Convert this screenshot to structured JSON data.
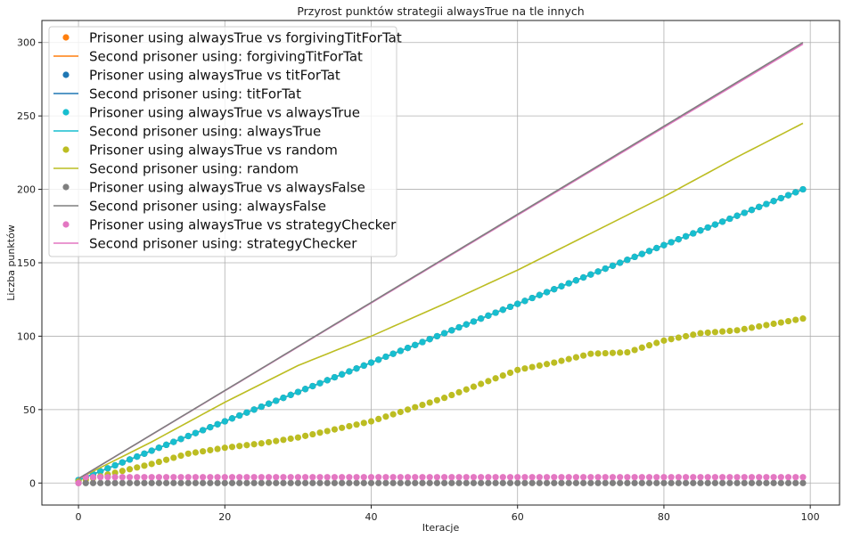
{
  "chart_data": {
    "type": "line",
    "title": "Przyrost punktów strategii alwaysTrue na tle innych",
    "xlabel": "Iteracje",
    "ylabel": "Liczba punktów",
    "xlim": [
      -5,
      104
    ],
    "ylim": [
      -15,
      315
    ],
    "xticks": [
      0,
      20,
      40,
      60,
      80,
      100
    ],
    "yticks": [
      0,
      50,
      100,
      150,
      200,
      250,
      300
    ],
    "grid": true,
    "legend_position": "top-left",
    "n_points": 100,
    "legend_entries": [
      {
        "label": "Prisoner using alwaysTrue vs forgivingTitForTat",
        "kind": "marker",
        "color": "#ff7f0e"
      },
      {
        "label": "Second prisoner using: forgivingTitForTat",
        "kind": "line",
        "color": "#ff7f0e"
      },
      {
        "label": "Prisoner using alwaysTrue vs titForTat",
        "kind": "marker",
        "color": "#1f77b4"
      },
      {
        "label": "Second prisoner using: titForTat",
        "kind": "line",
        "color": "#1f77b4"
      },
      {
        "label": "Prisoner using alwaysTrue vs alwaysTrue",
        "kind": "marker",
        "color": "#17becf"
      },
      {
        "label": "Second prisoner using: alwaysTrue",
        "kind": "line",
        "color": "#17becf"
      },
      {
        "label": "Prisoner using alwaysTrue vs random",
        "kind": "marker",
        "color": "#bcbd22"
      },
      {
        "label": "Second prisoner using: random",
        "kind": "line",
        "color": "#bcbd22"
      },
      {
        "label": "Prisoner using alwaysTrue vs alwaysFalse",
        "kind": "marker",
        "color": "#7f7f7f"
      },
      {
        "label": "Second prisoner using: alwaysFalse",
        "kind": "line",
        "color": "#7f7f7f"
      },
      {
        "label": "Prisoner using alwaysTrue vs strategyChecker",
        "kind": "marker",
        "color": "#e377c2"
      },
      {
        "label": "Second prisoner using: strategyChecker",
        "kind": "line",
        "color": "#e377c2"
      }
    ],
    "series": [
      {
        "kind": "line",
        "color": "#ff7f0e",
        "start": 2,
        "end": 200
      },
      {
        "kind": "line",
        "color": "#1f77b4",
        "start": 2,
        "end": 200
      },
      {
        "kind": "line",
        "color": "#17becf",
        "start": 2,
        "end": 200
      },
      {
        "kind": "scatter",
        "color": "#ff7f0e",
        "start": 2,
        "end": 200
      },
      {
        "kind": "scatter",
        "color": "#1f77b4",
        "start": 2,
        "end": 200
      },
      {
        "kind": "scatter",
        "color": "#17becf",
        "start": 2,
        "end": 200
      },
      {
        "kind": "line",
        "color": "#bcbd22",
        "keypoints": [
          [
            0,
            3
          ],
          [
            10,
            28
          ],
          [
            20,
            55
          ],
          [
            30,
            80
          ],
          [
            40,
            100
          ],
          [
            50,
            122
          ],
          [
            60,
            145
          ],
          [
            70,
            170
          ],
          [
            80,
            195
          ],
          [
            90,
            222
          ],
          [
            99,
            245
          ]
        ]
      },
      {
        "kind": "scatter",
        "color": "#bcbd22",
        "keypoints": [
          [
            0,
            1
          ],
          [
            10,
            13
          ],
          [
            15,
            20
          ],
          [
            20,
            24
          ],
          [
            25,
            27
          ],
          [
            30,
            31
          ],
          [
            40,
            42
          ],
          [
            50,
            58
          ],
          [
            60,
            77
          ],
          [
            65,
            82
          ],
          [
            70,
            88
          ],
          [
            75,
            89
          ],
          [
            80,
            97
          ],
          [
            85,
            102
          ],
          [
            90,
            104
          ],
          [
            99,
            112
          ]
        ]
      },
      {
        "kind": "scatter",
        "color": "#7f7f7f",
        "start": 0,
        "end": 0
      },
      {
        "kind": "scatter",
        "color": "#e377c2",
        "start": 0,
        "end": 4,
        "constant_after": 1
      },
      {
        "kind": "line",
        "color": "#e377c2",
        "start": 3,
        "end": 299
      },
      {
        "kind": "line",
        "color": "#7f7f7f",
        "start": 3,
        "end": 300
      }
    ]
  }
}
